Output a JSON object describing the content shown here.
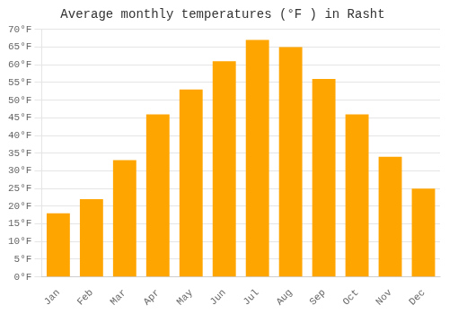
{
  "chart_data": {
    "type": "bar",
    "title": "Average monthly temperatures (°F ) in Rasht",
    "categories": [
      "Jan",
      "Feb",
      "Mar",
      "Apr",
      "May",
      "Jun",
      "Jul",
      "Aug",
      "Sep",
      "Oct",
      "Nov",
      "Dec"
    ],
    "values": [
      18,
      22,
      33,
      46,
      53,
      61,
      67,
      65,
      56,
      46,
      34,
      25
    ],
    "color": "#FFA500",
    "ylim": [
      0,
      70
    ],
    "yticks": [
      {
        "value": 0,
        "label": "0°F"
      },
      {
        "value": 5,
        "label": "5°F"
      },
      {
        "value": 10,
        "label": "10°F"
      },
      {
        "value": 15,
        "label": "15°F"
      },
      {
        "value": 20,
        "label": "20°F"
      },
      {
        "value": 25,
        "label": "25°F"
      },
      {
        "value": 30,
        "label": "30°F"
      },
      {
        "value": 35,
        "label": "35°F"
      },
      {
        "value": 40,
        "label": "40°F"
      },
      {
        "value": 45,
        "label": "45°F"
      },
      {
        "value": 50,
        "label": "50°F"
      },
      {
        "value": 55,
        "label": "55°F"
      },
      {
        "value": 60,
        "label": "60°F"
      },
      {
        "value": 65,
        "label": "65°F"
      },
      {
        "value": 70,
        "label": "70°F"
      }
    ],
    "grid": true
  }
}
